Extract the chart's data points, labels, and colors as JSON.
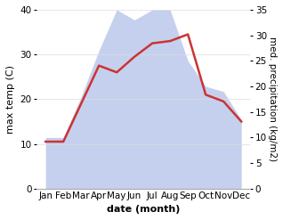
{
  "months": [
    "Jan",
    "Feb",
    "Mar",
    "Apr",
    "May",
    "Jun",
    "Jul",
    "Aug",
    "Sep",
    "Oct",
    "Nov",
    "Dec"
  ],
  "temperature": [
    10.5,
    10.5,
    19.0,
    27.5,
    26.0,
    29.5,
    32.5,
    33.0,
    34.5,
    21.0,
    19.5,
    15.0
  ],
  "precipitation": [
    10.0,
    10.0,
    18.0,
    27.0,
    35.0,
    33.0,
    35.0,
    35.0,
    25.0,
    20.0,
    19.0,
    13.5
  ],
  "temp_ylim": [
    0,
    40
  ],
  "precip_ylim": [
    0,
    35
  ],
  "temp_color": "#cc3333",
  "precip_color": "#c5d0ee",
  "xlabel": "date (month)",
  "ylabel_left": "max temp (C)",
  "ylabel_right": "med. precipitation (kg/m2)",
  "bg_color": "#ffffff",
  "temp_linewidth": 1.8,
  "label_fontsize": 8,
  "tick_fontsize": 7.5
}
